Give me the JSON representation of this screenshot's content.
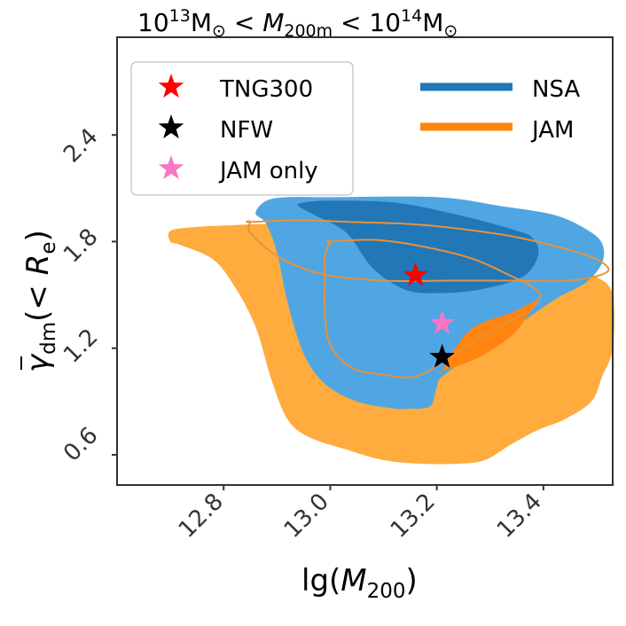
{
  "chart_data": {
    "type": "contour",
    "title": {
      "pre": "10",
      "sup1": "13",
      "msun1": "M",
      "sub_sun1": "⊙",
      "lt1": " < ",
      "var": "M",
      "var_sub": "200m",
      "lt2": " < 10",
      "sup2": "14",
      "msun2": "M",
      "sub_sun2": "⊙"
    },
    "xlabel": {
      "pre": "lg(",
      "var": "M",
      "sub": "200",
      "post": ")"
    },
    "ylabel": {
      "bar_var": "γ",
      "sub": "dm",
      "mid": "(< ",
      "var": "R",
      "var_sub": "e",
      "post": ")"
    },
    "xlim": [
      12.6,
      13.53
    ],
    "ylim": [
      0.43,
      2.95
    ],
    "xticks": [
      {
        "value": 12.8,
        "label": "12.8"
      },
      {
        "value": 13.0,
        "label": "13.0"
      },
      {
        "value": 13.2,
        "label": "13.2"
      },
      {
        "value": 13.4,
        "label": "13.4"
      }
    ],
    "yticks": [
      {
        "value": 0.6,
        "label": "0.6"
      },
      {
        "value": 1.2,
        "label": "1.2"
      },
      {
        "value": 1.8,
        "label": "1.8"
      },
      {
        "value": 2.4,
        "label": "2.4"
      }
    ],
    "colors": {
      "nsa_outer": "#4fa6e3",
      "nsa_inner": "#2277b7",
      "jam_outer": "#ffab3e",
      "jam_inner": "#ff8410",
      "jam_line": "#e8923a",
      "tng300": "#ff0000",
      "nfw": "#000000",
      "jam_only": "#f777c4"
    },
    "contours": {
      "jam_outer": [
        [
          12.7,
          1.8
        ],
        [
          12.72,
          1.78
        ],
        [
          12.78,
          1.7
        ],
        [
          12.82,
          1.55
        ],
        [
          12.86,
          1.32
        ],
        [
          12.89,
          1.02
        ],
        [
          12.92,
          0.8
        ],
        [
          12.96,
          0.7
        ],
        [
          13.03,
          0.63
        ],
        [
          13.1,
          0.57
        ],
        [
          13.17,
          0.55
        ],
        [
          13.24,
          0.55
        ],
        [
          13.29,
          0.57
        ],
        [
          13.34,
          0.66
        ],
        [
          13.39,
          0.74
        ],
        [
          13.44,
          0.8
        ],
        [
          13.49,
          0.9
        ],
        [
          13.51,
          1.04
        ],
        [
          13.53,
          1.2
        ],
        [
          13.53,
          1.5
        ],
        [
          13.5,
          1.6
        ],
        [
          13.46,
          1.63
        ],
        [
          13.42,
          1.64
        ],
        [
          13.34,
          1.66
        ],
        [
          13.27,
          1.74
        ],
        [
          13.2,
          1.83
        ],
        [
          13.0,
          1.88
        ],
        [
          12.9,
          1.9
        ],
        [
          12.8,
          1.89
        ],
        [
          12.74,
          1.88
        ],
        [
          12.7,
          1.86
        ]
      ],
      "nsa_outer": [
        [
          12.86,
          1.96
        ],
        [
          12.88,
          1.9
        ],
        [
          12.9,
          1.74
        ],
        [
          12.92,
          1.46
        ],
        [
          12.95,
          1.17
        ],
        [
          12.99,
          1.0
        ],
        [
          13.05,
          0.9
        ],
        [
          13.12,
          0.86
        ],
        [
          13.15,
          0.86
        ],
        [
          13.17,
          0.86
        ],
        [
          13.19,
          0.88
        ],
        [
          13.2,
          0.98
        ],
        [
          13.21,
          1.04
        ],
        [
          13.27,
          1.17
        ],
        [
          13.33,
          1.28
        ],
        [
          13.38,
          1.39
        ],
        [
          13.43,
          1.49
        ],
        [
          13.48,
          1.57
        ],
        [
          13.51,
          1.68
        ],
        [
          13.51,
          1.79
        ],
        [
          13.48,
          1.87
        ],
        [
          13.42,
          1.95
        ],
        [
          13.32,
          2.0
        ],
        [
          13.2,
          2.05
        ],
        [
          13.0,
          2.05
        ],
        [
          12.92,
          2.05
        ],
        [
          12.88,
          2.03
        ]
      ],
      "nsa_inner": [
        [
          12.94,
          2.0
        ],
        [
          12.97,
          1.95
        ],
        [
          13.03,
          1.85
        ],
        [
          13.08,
          1.65
        ],
        [
          13.14,
          1.53
        ],
        [
          13.2,
          1.51
        ],
        [
          13.28,
          1.53
        ],
        [
          13.36,
          1.6
        ],
        [
          13.39,
          1.72
        ],
        [
          13.38,
          1.82
        ],
        [
          13.34,
          1.87
        ],
        [
          13.24,
          1.95
        ],
        [
          13.12,
          2.02
        ],
        [
          13.0,
          2.03
        ],
        [
          12.95,
          2.02
        ]
      ],
      "jam_inner": [
        [
          13.21,
          1.07
        ],
        [
          13.28,
          1.15
        ],
        [
          13.34,
          1.27
        ],
        [
          13.37,
          1.38
        ],
        [
          13.39,
          1.47
        ],
        [
          13.34,
          1.4
        ],
        [
          13.27,
          1.32
        ],
        [
          13.23,
          1.18
        ],
        [
          13.21,
          1.07
        ]
      ],
      "jam_line_outer": [
        [
          12.85,
          1.91
        ],
        [
          12.94,
          1.92
        ],
        [
          13.04,
          1.91
        ],
        [
          13.14,
          1.9
        ],
        [
          13.22,
          1.88
        ],
        [
          13.34,
          1.83
        ],
        [
          13.44,
          1.76
        ],
        [
          13.5,
          1.7
        ],
        [
          13.52,
          1.63
        ],
        [
          13.45,
          1.58
        ],
        [
          13.34,
          1.58
        ],
        [
          13.22,
          1.58
        ],
        [
          13.1,
          1.58
        ],
        [
          12.98,
          1.62
        ],
        [
          12.9,
          1.72
        ],
        [
          12.85,
          1.85
        ],
        [
          12.85,
          1.91
        ]
      ],
      "jam_line_inner": [
        [
          13.0,
          1.8
        ],
        [
          13.08,
          1.81
        ],
        [
          13.16,
          1.78
        ],
        [
          13.26,
          1.71
        ],
        [
          13.33,
          1.62
        ],
        [
          13.39,
          1.52
        ],
        [
          13.38,
          1.43
        ],
        [
          13.33,
          1.34
        ],
        [
          13.27,
          1.24
        ],
        [
          13.21,
          1.12
        ],
        [
          13.16,
          1.04
        ],
        [
          13.1,
          1.05
        ],
        [
          13.04,
          1.09
        ],
        [
          13.0,
          1.22
        ],
        [
          12.99,
          1.4
        ],
        [
          12.99,
          1.6
        ],
        [
          12.99,
          1.72
        ],
        [
          13.0,
          1.8
        ]
      ]
    },
    "points": [
      {
        "name": "TNG300",
        "x": 13.16,
        "y": 1.61
      },
      {
        "name": "NFW",
        "x": 13.21,
        "y": 1.15
      },
      {
        "name": "JAM only",
        "x": 13.21,
        "y": 1.34
      }
    ],
    "legend_left": {
      "position": "upper-left",
      "items": [
        {
          "label": "TNG300",
          "color": "#ff0000",
          "marker": "star"
        },
        {
          "label": "NFW",
          "color": "#000000",
          "marker": "star"
        },
        {
          "label": "JAM only",
          "color": "#f777c4",
          "marker": "star"
        }
      ]
    },
    "legend_right": {
      "position": "upper-right",
      "items": [
        {
          "label": "NSA",
          "color": "#2277b7"
        },
        {
          "label": "JAM",
          "color": "#ff8410"
        }
      ]
    }
  }
}
